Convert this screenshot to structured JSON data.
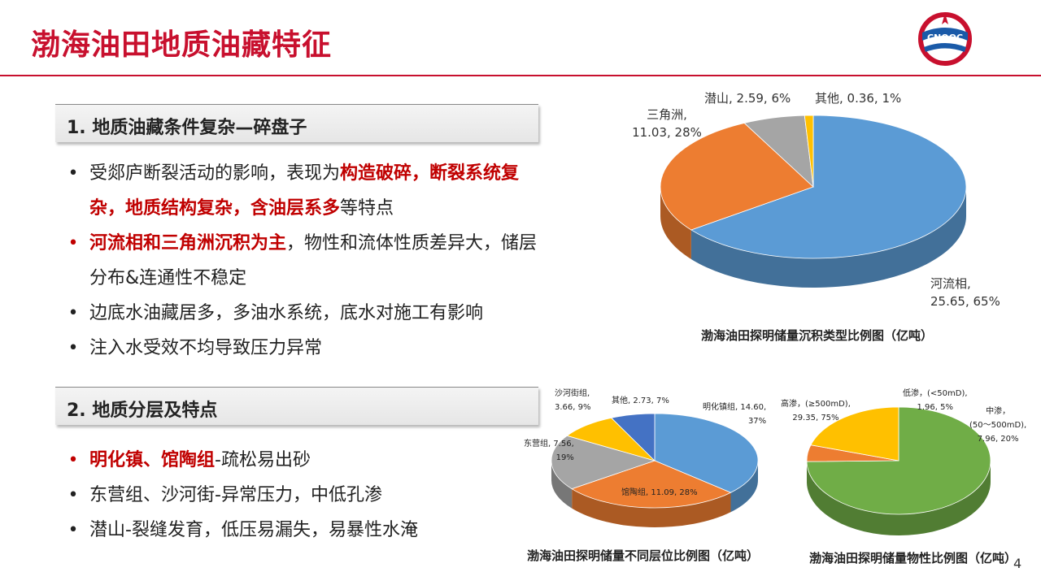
{
  "slide": {
    "title": "渤海油田地质油藏特征",
    "page_number": "4",
    "logo": {
      "icon": "cnooc-logo-icon",
      "text": "CNOOC"
    }
  },
  "section1": {
    "heading": "1. 地质油藏条件复杂—碎盘子",
    "bullets": [
      {
        "parts": [
          {
            "text": "受郯庐断裂活动的影响，表现为",
            "hl": false
          },
          {
            "text": "构造破碎，断裂系统复杂，地质结构复杂，含油层系多",
            "hl": true
          },
          {
            "text": "等特点",
            "hl": false
          }
        ],
        "dot_red": false
      },
      {
        "parts": [
          {
            "text": "河流相和三角洲沉积为主",
            "hl": true
          },
          {
            "text": "，物性和流体性质差异大，储层分布&连通性不稳定",
            "hl": false
          }
        ],
        "dot_red": true
      },
      {
        "parts": [
          {
            "text": "边底水油藏居多，多油水系统，底水对施工有影响",
            "hl": false
          }
        ],
        "dot_red": false
      },
      {
        "parts": [
          {
            "text": "注入水受效不均导致压力异常",
            "hl": false
          }
        ],
        "dot_red": false
      }
    ]
  },
  "section2": {
    "heading": "2. 地质分层及特点",
    "bullets": [
      {
        "parts": [
          {
            "text": "明化镇、馆陶组",
            "hl": true
          },
          {
            "text": "-疏松易出砂",
            "hl": false
          }
        ],
        "dot_red": true
      },
      {
        "parts": [
          {
            "text": "东营组、沙河街-异常压力，中低孔渗",
            "hl": false
          }
        ],
        "dot_red": false
      },
      {
        "parts": [
          {
            "text": "潜山-裂缝发育，低压易漏失，易暴性水淹",
            "hl": false
          }
        ],
        "dot_red": false
      }
    ]
  },
  "chart_data": [
    {
      "type": "pie",
      "title": "渤海油田探明储量沉积类型比例图（亿吨）",
      "slices": [
        {
          "name": "河流相",
          "value": 25.65,
          "percent": 65,
          "color": "#5b9bd5",
          "label": "河流相,\n25.65, 65%"
        },
        {
          "name": "三角洲",
          "value": 11.03,
          "percent": 28,
          "color": "#ed7d31",
          "label": "三角洲,\n11.03, 28%"
        },
        {
          "name": "潜山",
          "value": 2.59,
          "percent": 6,
          "color": "#a5a5a5",
          "label": "潜山, 2.59, 6%"
        },
        {
          "name": "其他",
          "value": 0.36,
          "percent": 1,
          "color": "#ffc000",
          "label": "其他, 0.36, 1%"
        }
      ]
    },
    {
      "type": "pie",
      "title": "渤海油田探明储量不同层位比例图（亿吨）",
      "slices": [
        {
          "name": "明化镇组",
          "value": 14.6,
          "percent": 37,
          "color": "#5b9bd5",
          "label": "明化镇组, 14.60,\n37%"
        },
        {
          "name": "馆陶组",
          "value": 11.09,
          "percent": 28,
          "color": "#ed7d31",
          "label": "馆陶组, 11.09, 28%"
        },
        {
          "name": "东营组",
          "value": 7.56,
          "percent": 19,
          "color": "#a5a5a5",
          "label": "东营组, 7.56,\n19%"
        },
        {
          "name": "沙河街组",
          "value": 3.66,
          "percent": 9,
          "color": "#ffc000",
          "label": "沙河街组,\n3.66, 9%"
        },
        {
          "name": "其他",
          "value": 2.73,
          "percent": 7,
          "color": "#4472c4",
          "label": "其他, 2.73, 7%"
        }
      ]
    },
    {
      "type": "pie",
      "title": "渤海油田探明储量物性比例图（亿吨）",
      "slices": [
        {
          "name": "高渗",
          "value": 29.35,
          "percent": 75,
          "color": "#70ad47",
          "label": "高渗，(≥500mD),\n29.35, 75%"
        },
        {
          "name": "低渗",
          "value": 1.96,
          "percent": 5,
          "color": "#ed7d31",
          "label": "低渗，(<50mD),\n1.96, 5%"
        },
        {
          "name": "中渗",
          "value": 7.96,
          "percent": 20,
          "color": "#ffc000",
          "label": "中渗，\n(50～500mD),\n7.96, 20%"
        }
      ]
    }
  ]
}
